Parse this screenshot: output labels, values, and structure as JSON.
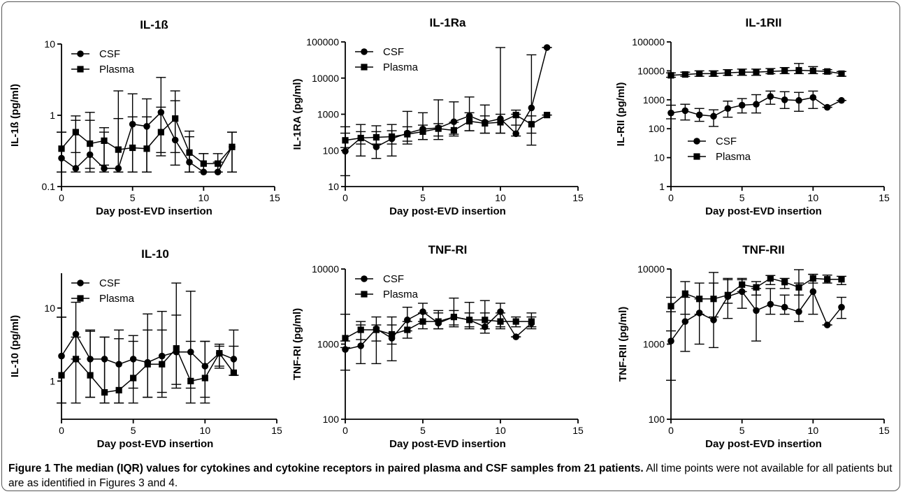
{
  "caption": {
    "title": "Figure 1 The median (IQR) values for cytokines and cytokine receptors in paired plasma and CSF samples from 21 patients.",
    "text": "All time points were not available for all patients but are as identified in Figures 3 and 4."
  },
  "chart_data": [
    {
      "type": "line",
      "title": "IL-1ß",
      "xlabel": "Day post-EVD insertion",
      "ylabel": "IL-1ß (pg/ml)",
      "xlim": [
        0,
        15
      ],
      "xticks": [
        0,
        5,
        10,
        15
      ],
      "yscale": "log",
      "ylim": [
        0.1,
        10
      ],
      "yticks": [
        0.1,
        1,
        10
      ],
      "ytick_labels": [
        "0.1",
        "1",
        "10"
      ],
      "legend": {
        "position": "top-left",
        "entries": [
          "CSF",
          "Plasma"
        ]
      },
      "series": [
        {
          "name": "CSF",
          "marker": "circle",
          "x": [
            0,
            1,
            2,
            3,
            4,
            5,
            6,
            7,
            8,
            9,
            10,
            11,
            12
          ],
          "y": [
            0.25,
            0.18,
            0.28,
            0.18,
            0.18,
            0.75,
            0.7,
            1.1,
            0.45,
            0.22,
            0.16,
            0.16,
            0.36
          ],
          "err_low": [
            0.16,
            0.16,
            0.16,
            0.16,
            0.16,
            0.16,
            0.16,
            0.27,
            0.2,
            0.16,
            0.16,
            0.16,
            0.16
          ],
          "err_high": [
            0.58,
            0.85,
            1.1,
            0.58,
            2.2,
            2.0,
            1.7,
            3.4,
            2.2,
            0.6,
            0.29,
            0.22,
            0.58
          ]
        },
        {
          "name": "Plasma",
          "marker": "square",
          "x": [
            0,
            1,
            2,
            3,
            4,
            5,
            6,
            7,
            8,
            9,
            10,
            11,
            12
          ],
          "y": [
            0.34,
            0.58,
            0.4,
            0.44,
            0.33,
            0.35,
            0.34,
            0.58,
            0.9,
            0.3,
            0.21,
            0.21,
            0.36
          ],
          "err_low": [
            0.16,
            0.3,
            0.18,
            0.2,
            0.16,
            0.16,
            0.16,
            0.3,
            0.3,
            0.16,
            0.16,
            0.16,
            0.16
          ],
          "err_high": [
            0.58,
            0.98,
            0.85,
            0.67,
            0.9,
            0.95,
            0.95,
            1.3,
            1.6,
            0.5,
            0.29,
            0.29,
            0.58
          ]
        }
      ]
    },
    {
      "type": "line",
      "title": "IL-1Ra",
      "xlabel": "Day post-EVD insertion",
      "ylabel": "IL-1RA (pg/ml)",
      "xlim": [
        0,
        15
      ],
      "xticks": [
        0,
        5,
        10,
        15
      ],
      "yscale": "log",
      "ylim": [
        10,
        100000
      ],
      "yticks": [
        10,
        100,
        1000,
        10000,
        100000
      ],
      "ytick_labels": [
        "10",
        "100",
        "1000",
        "10000",
        "100000"
      ],
      "legend": {
        "position": "top-left",
        "entries": [
          "CSF",
          "Plasma"
        ]
      },
      "series": [
        {
          "name": "CSF",
          "marker": "circle",
          "x": [
            0,
            1,
            2,
            3,
            4,
            5,
            6,
            7,
            8,
            9,
            10,
            11,
            12,
            13
          ],
          "y": [
            95,
            220,
            125,
            210,
            300,
            390,
            420,
            620,
            900,
            600,
            750,
            290,
            1500,
            70000
          ],
          "err_low": [
            20,
            70,
            60,
            70,
            150,
            200,
            200,
            280,
            350,
            300,
            300,
            250,
            300,
            70000
          ],
          "err_high": [
            450,
            520,
            480,
            520,
            1200,
            1100,
            2500,
            2200,
            3000,
            1800,
            70000,
            1000,
            44000,
            70000
          ]
        },
        {
          "name": "Plasma",
          "marker": "square",
          "x": [
            0,
            1,
            2,
            3,
            4,
            5,
            6,
            7,
            8,
            9,
            10,
            11,
            12,
            13
          ],
          "y": [
            190,
            220,
            230,
            240,
            280,
            330,
            400,
            360,
            640,
            560,
            600,
            950,
            530,
            950
          ],
          "err_low": [
            120,
            150,
            150,
            150,
            180,
            200,
            250,
            250,
            350,
            300,
            300,
            500,
            140,
            950
          ],
          "err_high": [
            300,
            330,
            330,
            350,
            450,
            500,
            550,
            600,
            1100,
            900,
            1000,
            1300,
            900,
            950
          ]
        }
      ]
    },
    {
      "type": "line",
      "title": "IL-1RII",
      "xlabel": "Day post-EVD insertion",
      "ylabel": "IL-RII (pg/ml)",
      "xlim": [
        0,
        15
      ],
      "xticks": [
        0,
        5,
        10,
        15
      ],
      "yscale": "log",
      "ylim": [
        1,
        100000
      ],
      "yticks": [
        1,
        10,
        100,
        1000,
        10000,
        100000
      ],
      "ytick_labels": [
        "1",
        "10",
        "100",
        "1000",
        "10000",
        "100000"
      ],
      "legend": {
        "position": "bottom-center",
        "entries": [
          "CSF",
          "Plasma"
        ]
      },
      "series": [
        {
          "name": "CSF",
          "marker": "circle",
          "x": [
            0,
            1,
            2,
            3,
            4,
            5,
            6,
            7,
            8,
            9,
            10,
            11,
            12
          ],
          "y": [
            350,
            420,
            300,
            270,
            500,
            650,
            700,
            1300,
            1000,
            950,
            1200,
            550,
            950
          ],
          "err_low": [
            220,
            200,
            180,
            120,
            250,
            350,
            350,
            700,
            500,
            400,
            500,
            550,
            950
          ],
          "err_high": [
            650,
            700,
            500,
            450,
            900,
            1100,
            1500,
            2000,
            1900,
            1800,
            2000,
            550,
            950
          ]
        },
        {
          "name": "Plasma",
          "marker": "square",
          "x": [
            0,
            1,
            2,
            3,
            4,
            5,
            6,
            7,
            8,
            9,
            10,
            11,
            12
          ],
          "y": [
            7000,
            7500,
            8000,
            8000,
            8500,
            9000,
            9000,
            9500,
            10000,
            10500,
            10000,
            9500,
            8000
          ],
          "err_low": [
            6000,
            6500,
            6500,
            6500,
            7000,
            7000,
            7000,
            8000,
            8000,
            8000,
            8000,
            8000,
            6500
          ],
          "err_high": [
            8500,
            9000,
            10000,
            10000,
            11000,
            11500,
            11500,
            12000,
            13000,
            18000,
            14000,
            11000,
            9500
          ]
        }
      ]
    },
    {
      "type": "line",
      "title": "IL-10",
      "xlabel": "Day post-EVD insertion",
      "ylabel": "IL-10 (pg/ml)",
      "xlim": [
        0,
        15
      ],
      "xticks": [
        0,
        5,
        10,
        15
      ],
      "yscale": "log",
      "ylim": [
        0.3,
        30
      ],
      "yticks": [
        1,
        10
      ],
      "ytick_labels": [
        "1",
        "10"
      ],
      "legend": {
        "position": "top-left",
        "entries": [
          "CSF",
          "Plasma"
        ]
      },
      "series": [
        {
          "name": "CSF",
          "marker": "circle",
          "x": [
            0,
            1,
            2,
            3,
            4,
            5,
            6,
            7,
            8,
            9,
            10,
            11,
            12
          ],
          "y": [
            2.2,
            4.4,
            2.0,
            2.0,
            1.7,
            2.0,
            1.8,
            2.2,
            2.5,
            2.5,
            1.6,
            2.4,
            2.0
          ],
          "err_low": [
            0.5,
            2.0,
            0.6,
            0.5,
            0.5,
            0.8,
            0.6,
            0.7,
            0.8,
            0.8,
            0.6,
            1.6,
            1.2
          ],
          "err_high": [
            7.5,
            12,
            5.0,
            4.0,
            5.0,
            4.2,
            8.3,
            9.0,
            22,
            17,
            3.5,
            3.2,
            5.0
          ]
        },
        {
          "name": "Plasma",
          "marker": "square",
          "x": [
            0,
            1,
            2,
            3,
            4,
            5,
            6,
            7,
            8,
            9,
            10,
            11,
            12
          ],
          "y": [
            1.2,
            2.0,
            1.2,
            0.7,
            0.75,
            1.1,
            1.7,
            1.7,
            2.8,
            1.0,
            1.1,
            2.4,
            1.3
          ],
          "err_low": [
            0.5,
            0.5,
            0.6,
            0.5,
            0.5,
            0.5,
            0.6,
            0.6,
            0.9,
            0.5,
            0.5,
            1.5,
            1.2
          ],
          "err_high": [
            7.5,
            4.0,
            4.8,
            4.0,
            3.8,
            3.5,
            5.0,
            5.0,
            8.0,
            3.5,
            3.5,
            3.0,
            3.0
          ]
        }
      ]
    },
    {
      "type": "line",
      "title": "TNF-RI",
      "xlabel": "Day post-EVD insertion",
      "ylabel": "TNF-RI (pg/ml)",
      "xlim": [
        0,
        15
      ],
      "xticks": [
        0,
        5,
        10,
        15
      ],
      "yscale": "log",
      "ylim": [
        100,
        10000
      ],
      "yticks": [
        100,
        1000,
        10000
      ],
      "ytick_labels": [
        "100",
        "1000",
        "10000"
      ],
      "legend": {
        "position": "top-left",
        "entries": [
          "CSF",
          "Plasma"
        ]
      },
      "series": [
        {
          "name": "CSF",
          "marker": "circle",
          "x": [
            0,
            1,
            2,
            3,
            4,
            5,
            6,
            7,
            8,
            9,
            10,
            11,
            12
          ],
          "y": [
            850,
            950,
            1600,
            1200,
            2100,
            2700,
            1900,
            2300,
            2100,
            1700,
            2700,
            1250,
            1900
          ],
          "err_low": [
            450,
            550,
            550,
            600,
            1500,
            2000,
            1600,
            1700,
            1600,
            1400,
            1700,
            1250,
            1600
          ],
          "err_high": [
            1100,
            2000,
            2300,
            2300,
            3100,
            3500,
            2800,
            4100,
            3600,
            3800,
            3500,
            1250,
            2300
          ]
        },
        {
          "name": "Plasma",
          "marker": "square",
          "x": [
            0,
            1,
            2,
            3,
            4,
            5,
            6,
            7,
            8,
            9,
            10,
            11,
            12
          ],
          "y": [
            1200,
            1550,
            1550,
            1350,
            1550,
            2000,
            2000,
            2300,
            2100,
            2100,
            2000,
            2000,
            2000
          ],
          "err_low": [
            900,
            1150,
            1100,
            1000,
            1200,
            1600,
            1600,
            1800,
            1700,
            1600,
            1600,
            1700,
            1700
          ],
          "err_high": [
            2500,
            1800,
            1800,
            1800,
            2000,
            2600,
            2600,
            2800,
            2600,
            2600,
            2600,
            2300,
            2600
          ]
        }
      ]
    },
    {
      "type": "line",
      "title": "TNF-RII",
      "xlabel": "Day post-EVD insertion",
      "ylabel": "TNF-RII (pg/ml)",
      "xlim": [
        0,
        15
      ],
      "xticks": [
        0,
        5,
        10,
        15
      ],
      "yscale": "log",
      "ylim": [
        100,
        10000
      ],
      "yticks": [
        100,
        1000,
        10000
      ],
      "ytick_labels": [
        "100",
        "1000",
        "10000"
      ],
      "legend": {
        "position": "none",
        "entries": []
      },
      "series": [
        {
          "name": "CSF",
          "marker": "circle",
          "x": [
            0,
            1,
            2,
            3,
            4,
            5,
            6,
            7,
            8,
            9,
            10,
            11,
            12
          ],
          "y": [
            1100,
            2000,
            2600,
            2100,
            4300,
            5000,
            2800,
            3400,
            3100,
            2700,
            5000,
            1800,
            3100
          ],
          "err_low": [
            330,
            800,
            1000,
            900,
            2200,
            3000,
            1100,
            2500,
            2500,
            2000,
            2500,
            1800,
            2200
          ],
          "err_high": [
            2700,
            4200,
            4000,
            9000,
            7500,
            7500,
            5500,
            5500,
            4500,
            6500,
            8500,
            1800,
            4200
          ]
        },
        {
          "name": "Plasma",
          "marker": "square",
          "x": [
            0,
            1,
            2,
            3,
            4,
            5,
            6,
            7,
            8,
            9,
            10,
            11,
            12
          ],
          "y": [
            3200,
            4700,
            4000,
            4000,
            4500,
            6200,
            5700,
            7500,
            6700,
            5700,
            7500,
            7300,
            7300
          ],
          "err_low": [
            1500,
            2500,
            2500,
            2300,
            3500,
            5000,
            4500,
            6200,
            5500,
            4500,
            6500,
            6500,
            6200
          ],
          "err_high": [
            4200,
            6800,
            6500,
            6500,
            7200,
            7200,
            6800,
            8200,
            7500,
            9800,
            8500,
            8300,
            8000
          ]
        }
      ]
    }
  ]
}
